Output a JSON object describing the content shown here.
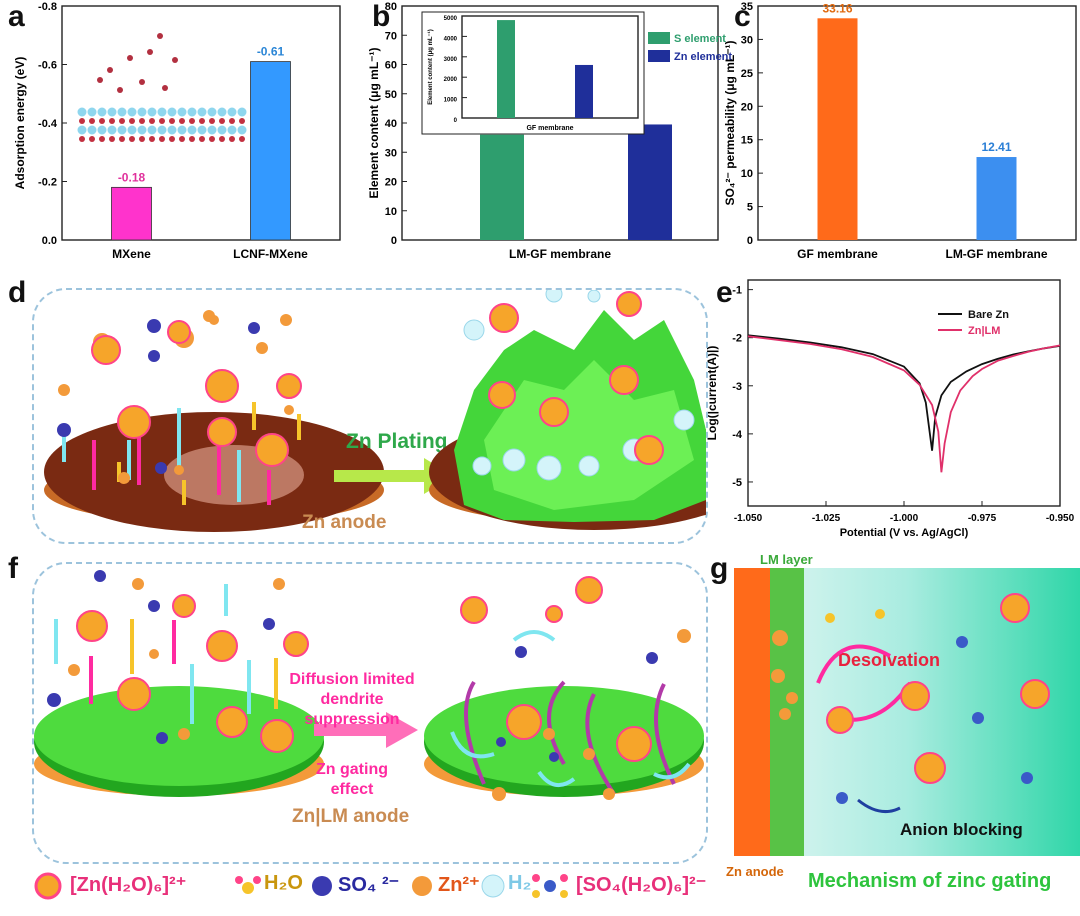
{
  "panels": {
    "a": "a",
    "b": "b",
    "c": "c",
    "d": "d",
    "e": "e",
    "f": "f",
    "g": "g"
  },
  "chart_data": [
    {
      "id": "a",
      "type": "bar",
      "categories": [
        "MXene",
        "LCNF-MXene"
      ],
      "values": [
        -0.18,
        -0.61
      ],
      "value_labels": [
        "-0.18",
        "-0.61"
      ],
      "colors": [
        "#ff33cc",
        "#3399ff"
      ],
      "label_colors": [
        "#e0309c",
        "#2b86d6"
      ],
      "xlabel": "",
      "ylabel": "Adsorption energy (eV)",
      "ylim": [
        0,
        -0.8
      ],
      "yticks": [
        "0.0",
        "-0.2",
        "-0.4",
        "-0.6",
        "-0.8"
      ],
      "inverted_y": true
    },
    {
      "id": "b",
      "type": "bar",
      "categories": [
        "LM-GF membrane"
      ],
      "series": [
        {
          "name": "S element",
          "values": [
            36
          ],
          "color": "#2e9e6e"
        },
        {
          "name": "Zn element",
          "values": [
            39.5
          ],
          "color": "#1f2f9a"
        }
      ],
      "xlabel": "LM-GF membrane",
      "ylabel": "Element content (μg mL⁻¹)",
      "ylim": [
        0,
        80
      ],
      "yticks": [
        "0",
        "10",
        "20",
        "30",
        "40",
        "50",
        "60",
        "70",
        "80"
      ],
      "legend": "right",
      "inset": {
        "type": "bar",
        "xlabel": "GF membrane",
        "ylabel": "Element content (μg mL⁻¹)",
        "ylim": [
          0,
          5000
        ],
        "yticks": [
          "0",
          "1000",
          "2000",
          "3000",
          "4000",
          "5000"
        ],
        "values": [
          4800,
          2600
        ],
        "colors": [
          "#2e9e6e",
          "#1f2f9a"
        ]
      }
    },
    {
      "id": "c",
      "type": "bar",
      "categories": [
        "GF membrane",
        "LM-GF membrane"
      ],
      "values": [
        33.16,
        12.41
      ],
      "value_labels": [
        "33.16",
        "12.41"
      ],
      "colors": [
        "#ff6a1a",
        "#3c8ff0"
      ],
      "label_colors": [
        "#e06a10",
        "#2b7fd6"
      ],
      "xlabel": "",
      "ylabel": "SO₄²⁻ permeability (μg mL⁻¹)",
      "ylim": [
        0,
        35
      ],
      "yticks": [
        "0",
        "5",
        "10",
        "15",
        "20",
        "25",
        "30",
        "35"
      ]
    },
    {
      "id": "e",
      "type": "line",
      "xlabel": "Potential (V vs. Ag/AgCl)",
      "ylabel": "Log(|current(A)|)",
      "xlim": [
        -1.05,
        -0.95
      ],
      "ylim": [
        -5.5,
        -0.8
      ],
      "xticks": [
        "-1.050",
        "-1.025",
        "-1.000",
        "-0.975",
        "-0.950"
      ],
      "yticks": [
        "-1",
        "-2",
        "-3",
        "-4",
        "-5"
      ],
      "legend": "top-right",
      "series": [
        {
          "name": "Bare Zn",
          "color": "#111111",
          "x": [
            -1.05,
            -1.04,
            -1.03,
            -1.02,
            -1.01,
            -1.0,
            -0.995,
            -0.993,
            -0.991,
            -0.99,
            -0.988,
            -0.985,
            -0.98,
            -0.975,
            -0.97,
            -0.965,
            -0.96,
            -0.955,
            -0.95
          ],
          "y": [
            -1.95,
            -2.02,
            -2.1,
            -2.2,
            -2.34,
            -2.6,
            -2.95,
            -3.35,
            -4.35,
            -3.65,
            -3.2,
            -2.92,
            -2.7,
            -2.55,
            -2.44,
            -2.35,
            -2.28,
            -2.22,
            -2.17
          ]
        },
        {
          "name": "Zn|LM",
          "color": "#e0306a",
          "x": [
            -1.05,
            -1.04,
            -1.03,
            -1.02,
            -1.01,
            -1.0,
            -0.995,
            -0.991,
            -0.989,
            -0.988,
            -0.987,
            -0.985,
            -0.982,
            -0.978,
            -0.975,
            -0.97,
            -0.965,
            -0.96,
            -0.955,
            -0.95
          ],
          "y": [
            -1.97,
            -2.05,
            -2.13,
            -2.24,
            -2.4,
            -2.68,
            -2.98,
            -3.4,
            -3.95,
            -4.8,
            -4.2,
            -3.55,
            -3.1,
            -2.8,
            -2.65,
            -2.48,
            -2.38,
            -2.29,
            -2.22,
            -2.16
          ]
        }
      ]
    }
  ],
  "scheme_d": {
    "plating_label": "Zn Plating",
    "anode_label": "Zn anode"
  },
  "scheme_f": {
    "label_line1": "Diffusion limited",
    "label_line2": "dendrite",
    "label_line3": "suppression",
    "label_line4": "Zn gating",
    "label_line5": "effect",
    "anode_label": "Zn|LM anode"
  },
  "scheme_g": {
    "lm_layer": "LM layer",
    "desolvation": "Desolvation",
    "anion_blocking": "Anion blocking",
    "zn_anode": "Zn anode",
    "caption": "Mechanism of zinc gating"
  },
  "legend": {
    "zn_complex": "[Zn(H₂O)₆]²⁺",
    "water": "H₂O",
    "sulfate": "SO₄ ²⁻",
    "zinc_ion": "Zn²⁺",
    "hydrogen": "H₂",
    "sulfate_complex": "[SO₄(H₂O)₆]²⁻"
  },
  "colors": {
    "green": "#3cd639",
    "orange": "#ff6a1a",
    "magenta": "#ff2aa0",
    "cyan": "#7fe6f0",
    "yellow": "#f6c42a"
  }
}
